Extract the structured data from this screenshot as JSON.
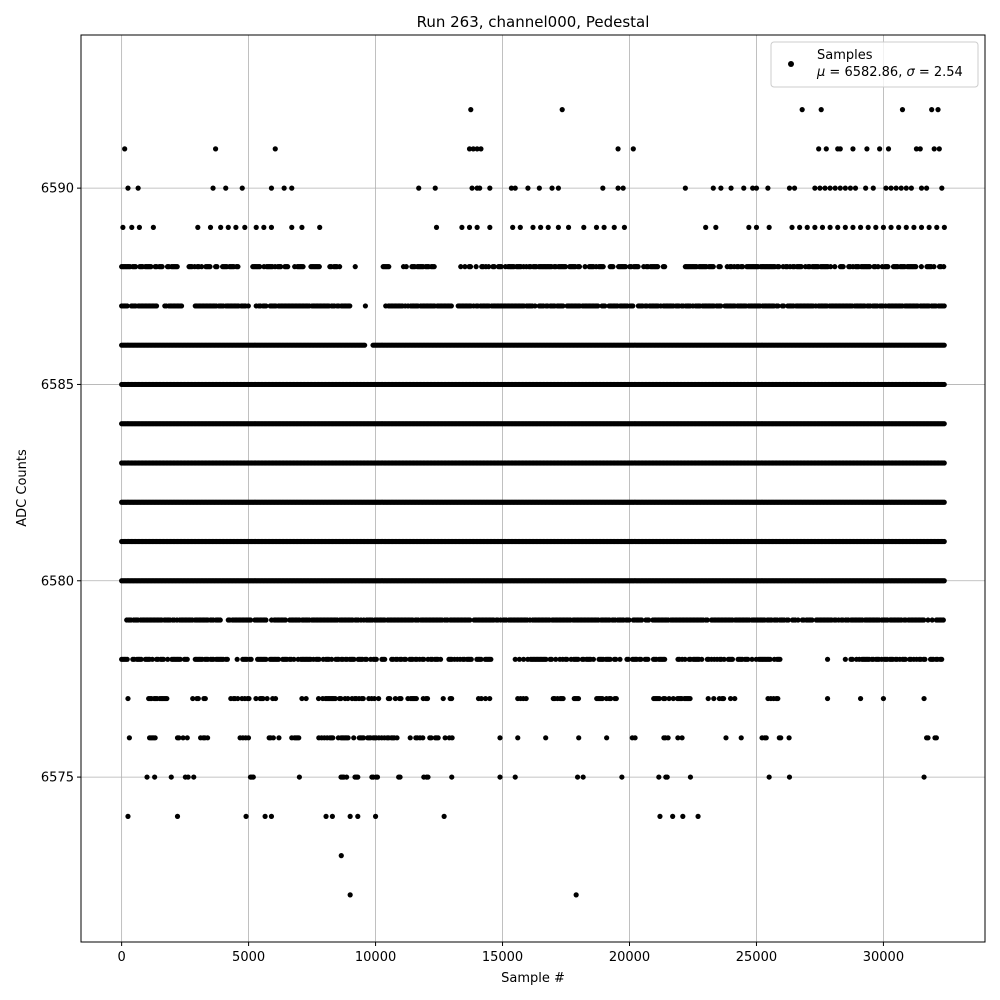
{
  "chart_data": {
    "type": "scatter",
    "title": "Run 263, channel000, Pedestal",
    "xlabel": "Sample #",
    "ylabel": "ADC Counts",
    "xlim": [
      -1600,
      34000
    ],
    "ylim": [
      6570.8,
      6593.9
    ],
    "xticks": [
      0,
      5000,
      10000,
      15000,
      20000,
      25000,
      30000
    ],
    "yticks": [
      6575,
      6580,
      6585,
      6590
    ],
    "grid": true,
    "legend_position": "top-right",
    "marker_color": "#000000",
    "series": [
      {
        "name": "Samples",
        "stat_label": "μ = 6582.86, σ = 2.54",
        "stat_mu": "μ",
        "stat_mu_value": " = 6582.86, ",
        "stat_sigma": "σ",
        "stat_sigma_value": " = 2.54",
        "points": [
          [
            120,
            6591
          ],
          [
            3700,
            6591
          ],
          [
            6050,
            6591
          ],
          [
            13700,
            6591
          ],
          [
            13850,
            6591
          ],
          [
            14000,
            6591
          ],
          [
            14150,
            6591
          ],
          [
            19550,
            6591
          ],
          [
            20150,
            6591
          ],
          [
            27450,
            6591
          ],
          [
            27750,
            6591
          ],
          [
            28200,
            6591
          ],
          [
            28300,
            6591
          ],
          [
            28800,
            6591
          ],
          [
            29350,
            6591
          ],
          [
            29850,
            6591
          ],
          [
            30200,
            6591
          ],
          [
            31300,
            6591
          ],
          [
            31450,
            6591
          ],
          [
            32000,
            6591
          ],
          [
            32200,
            6591
          ],
          [
            13750,
            6592
          ],
          [
            17350,
            6592
          ],
          [
            26800,
            6592
          ],
          [
            27550,
            6592
          ],
          [
            30750,
            6592
          ],
          [
            31900,
            6592
          ],
          [
            32150,
            6592
          ],
          [
            250,
            6590
          ],
          [
            650,
            6590
          ],
          [
            3600,
            6590
          ],
          [
            4100,
            6590
          ],
          [
            4750,
            6590
          ],
          [
            5900,
            6590
          ],
          [
            6400,
            6590
          ],
          [
            6700,
            6590
          ],
          [
            11700,
            6590
          ],
          [
            12350,
            6590
          ],
          [
            13800,
            6590
          ],
          [
            14000,
            6590
          ],
          [
            14100,
            6590
          ],
          [
            14500,
            6590
          ],
          [
            15350,
            6590
          ],
          [
            15500,
            6590
          ],
          [
            16000,
            6590
          ],
          [
            16450,
            6590
          ],
          [
            16950,
            6590
          ],
          [
            17200,
            6590
          ],
          [
            18950,
            6590
          ],
          [
            19550,
            6590
          ],
          [
            19750,
            6590
          ],
          [
            22200,
            6590
          ],
          [
            23300,
            6590
          ],
          [
            23600,
            6590
          ],
          [
            24000,
            6590
          ],
          [
            24500,
            6590
          ],
          [
            24850,
            6590
          ],
          [
            25000,
            6590
          ],
          [
            25450,
            6590
          ],
          [
            26300,
            6590
          ],
          [
            26500,
            6590
          ],
          [
            27300,
            6590
          ],
          [
            27500,
            6590
          ],
          [
            27700,
            6590
          ],
          [
            27900,
            6590
          ],
          [
            28100,
            6590
          ],
          [
            28300,
            6590
          ],
          [
            28500,
            6590
          ],
          [
            28700,
            6590
          ],
          [
            28900,
            6590
          ],
          [
            29300,
            6590
          ],
          [
            29600,
            6590
          ],
          [
            30100,
            6590
          ],
          [
            30300,
            6590
          ],
          [
            30500,
            6590
          ],
          [
            30700,
            6590
          ],
          [
            30900,
            6590
          ],
          [
            31100,
            6590
          ],
          [
            31500,
            6590
          ],
          [
            31700,
            6590
          ],
          [
            32300,
            6590
          ],
          [
            50,
            6589
          ],
          [
            400,
            6589
          ],
          [
            700,
            6589
          ],
          [
            1250,
            6589
          ],
          [
            3000,
            6589
          ],
          [
            3500,
            6589
          ],
          [
            3900,
            6589
          ],
          [
            4200,
            6589
          ],
          [
            4500,
            6589
          ],
          [
            4850,
            6589
          ],
          [
            5300,
            6589
          ],
          [
            5600,
            6589
          ],
          [
            5900,
            6589
          ],
          [
            6700,
            6589
          ],
          [
            7100,
            6589
          ],
          [
            7800,
            6589
          ],
          [
            12400,
            6589
          ],
          [
            13400,
            6589
          ],
          [
            13700,
            6589
          ],
          [
            14000,
            6589
          ],
          [
            14500,
            6589
          ],
          [
            15400,
            6589
          ],
          [
            15700,
            6589
          ],
          [
            16200,
            6589
          ],
          [
            16500,
            6589
          ],
          [
            16800,
            6589
          ],
          [
            17200,
            6589
          ],
          [
            17600,
            6589
          ],
          [
            18200,
            6589
          ],
          [
            18700,
            6589
          ],
          [
            19000,
            6589
          ],
          [
            19400,
            6589
          ],
          [
            19800,
            6589
          ],
          [
            23000,
            6589
          ],
          [
            23400,
            6589
          ],
          [
            24700,
            6589
          ],
          [
            25000,
            6589
          ],
          [
            25500,
            6589
          ],
          [
            26400,
            6589
          ],
          [
            26700,
            6589
          ],
          [
            27000,
            6589
          ],
          [
            27300,
            6589
          ],
          [
            27600,
            6589
          ],
          [
            27900,
            6589
          ],
          [
            28200,
            6589
          ],
          [
            28500,
            6589
          ],
          [
            28800,
            6589
          ],
          [
            29100,
            6589
          ],
          [
            29400,
            6589
          ],
          [
            29700,
            6589
          ],
          [
            30000,
            6589
          ],
          [
            30300,
            6589
          ],
          [
            30600,
            6589
          ],
          [
            30900,
            6589
          ],
          [
            31200,
            6589
          ],
          [
            31500,
            6589
          ],
          [
            31800,
            6589
          ],
          [
            32100,
            6589
          ],
          [
            32400,
            6589
          ],
          [
            9000,
            6572
          ],
          [
            17900,
            6572
          ],
          [
            8650,
            6573
          ],
          [
            250,
            6574
          ],
          [
            2200,
            6574
          ],
          [
            4900,
            6574
          ],
          [
            5650,
            6574
          ],
          [
            5900,
            6574
          ],
          [
            8050,
            6574
          ],
          [
            8300,
            6574
          ],
          [
            9000,
            6574
          ],
          [
            9300,
            6574
          ],
          [
            10000,
            6574
          ],
          [
            12700,
            6574
          ],
          [
            21200,
            6574
          ],
          [
            21700,
            6574
          ],
          [
            22100,
            6574
          ],
          [
            22700,
            6574
          ]
        ],
        "rows": [
          {
            "y": 6588,
            "ranges": [
              [
                0,
                1600
              ],
              [
                1750,
                2200
              ],
              [
                2600,
                3500
              ],
              [
                3700,
                4800
              ],
              [
                5000,
                7200
              ],
              [
                7400,
                7800
              ],
              [
                8200,
                8600
              ],
              [
                9200,
                9200
              ],
              [
                10300,
                10600
              ],
              [
                11100,
                12400
              ],
              [
                13300,
                21400
              ],
              [
                22200,
                32400
              ]
            ],
            "density": 0.6
          },
          {
            "y": 6587,
            "ranges": [
              [
                0,
                1400
              ],
              [
                1700,
                2400
              ],
              [
                2900,
                5000
              ],
              [
                5300,
                9000
              ],
              [
                9600,
                9600
              ],
              [
                10400,
                13000
              ],
              [
                13200,
                32400
              ]
            ],
            "density": 0.85
          },
          {
            "y": 6586,
            "ranges": [
              [
                0,
                9600
              ],
              [
                9900,
                32400
              ]
            ],
            "density": 1
          },
          {
            "y": 6585,
            "ranges": [
              [
                0,
                32400
              ]
            ],
            "density": 1
          },
          {
            "y": 6584,
            "ranges": [
              [
                0,
                32400
              ]
            ],
            "density": 1
          },
          {
            "y": 6583,
            "ranges": [
              [
                0,
                32400
              ]
            ],
            "density": 1
          },
          {
            "y": 6582,
            "ranges": [
              [
                0,
                32400
              ]
            ],
            "density": 1
          },
          {
            "y": 6581,
            "ranges": [
              [
                0,
                32400
              ]
            ],
            "density": 1
          },
          {
            "y": 6580,
            "ranges": [
              [
                0,
                32400
              ]
            ],
            "density": 1
          },
          {
            "y": 6579,
            "ranges": [
              [
                200,
                3900
              ],
              [
                4200,
                32400
              ]
            ],
            "density": 0.85
          },
          {
            "y": 6578,
            "ranges": [
              [
                0,
                2600
              ],
              [
                2900,
                5200
              ],
              [
                5300,
                14600
              ],
              [
                15500,
                21500
              ],
              [
                21800,
                26000
              ],
              [
                27800,
                27800
              ],
              [
                28500,
                32400
              ]
            ],
            "density": 0.6
          },
          {
            "y": 6577,
            "ranges": [
              [
                250,
                250
              ],
              [
                900,
                2000
              ],
              [
                2800,
                3300
              ],
              [
                4300,
                6100
              ],
              [
                7100,
                7300
              ],
              [
                7700,
                12200
              ],
              [
                12500,
                13000
              ],
              [
                14000,
                14600
              ],
              [
                15600,
                16000
              ],
              [
                17000,
                18000
              ],
              [
                18600,
                19500
              ],
              [
                20900,
                22400
              ],
              [
                23100,
                24200
              ],
              [
                25400,
                25900
              ],
              [
                27800,
                27800
              ],
              [
                29100,
                29100
              ],
              [
                30000,
                30000
              ],
              [
                31600,
                31600
              ]
            ],
            "density": 0.5
          },
          {
            "y": 6576,
            "ranges": [
              [
                250,
                350
              ],
              [
                1100,
                1400
              ],
              [
                2200,
                2600
              ],
              [
                3000,
                3500
              ],
              [
                4500,
                5200
              ],
              [
                5700,
                6300
              ],
              [
                6700,
                7000
              ],
              [
                7600,
                11000
              ],
              [
                11200,
                13200
              ],
              [
                14900,
                14900
              ],
              [
                15600,
                15600
              ],
              [
                16700,
                16700
              ],
              [
                18000,
                18000
              ],
              [
                19100,
                19100
              ],
              [
                20000,
                20300
              ],
              [
                21300,
                22100
              ],
              [
                23800,
                23800
              ],
              [
                24400,
                24400
              ],
              [
                25000,
                25400
              ],
              [
                25900,
                26300
              ],
              [
                31700,
                32100
              ]
            ],
            "density": 0.45
          },
          {
            "y": 6575,
            "ranges": [
              [
                1000,
                1000
              ],
              [
                1300,
                1300
              ],
              [
                1900,
                2000
              ],
              [
                2400,
                3000
              ],
              [
                4800,
                5300
              ],
              [
                5600,
                5800
              ],
              [
                7000,
                7000
              ],
              [
                8200,
                9300
              ],
              [
                9800,
                10100
              ],
              [
                10800,
                11000
              ],
              [
                11900,
                12100
              ],
              [
                13000,
                13000
              ],
              [
                14900,
                14900
              ],
              [
                15500,
                15500
              ],
              [
                17900,
                18200
              ],
              [
                19700,
                19700
              ],
              [
                21100,
                21800
              ],
              [
                22400,
                22400
              ],
              [
                25500,
                25500
              ],
              [
                26300,
                26300
              ],
              [
                31600,
                31600
              ]
            ],
            "density": 0.45
          }
        ]
      }
    ]
  }
}
